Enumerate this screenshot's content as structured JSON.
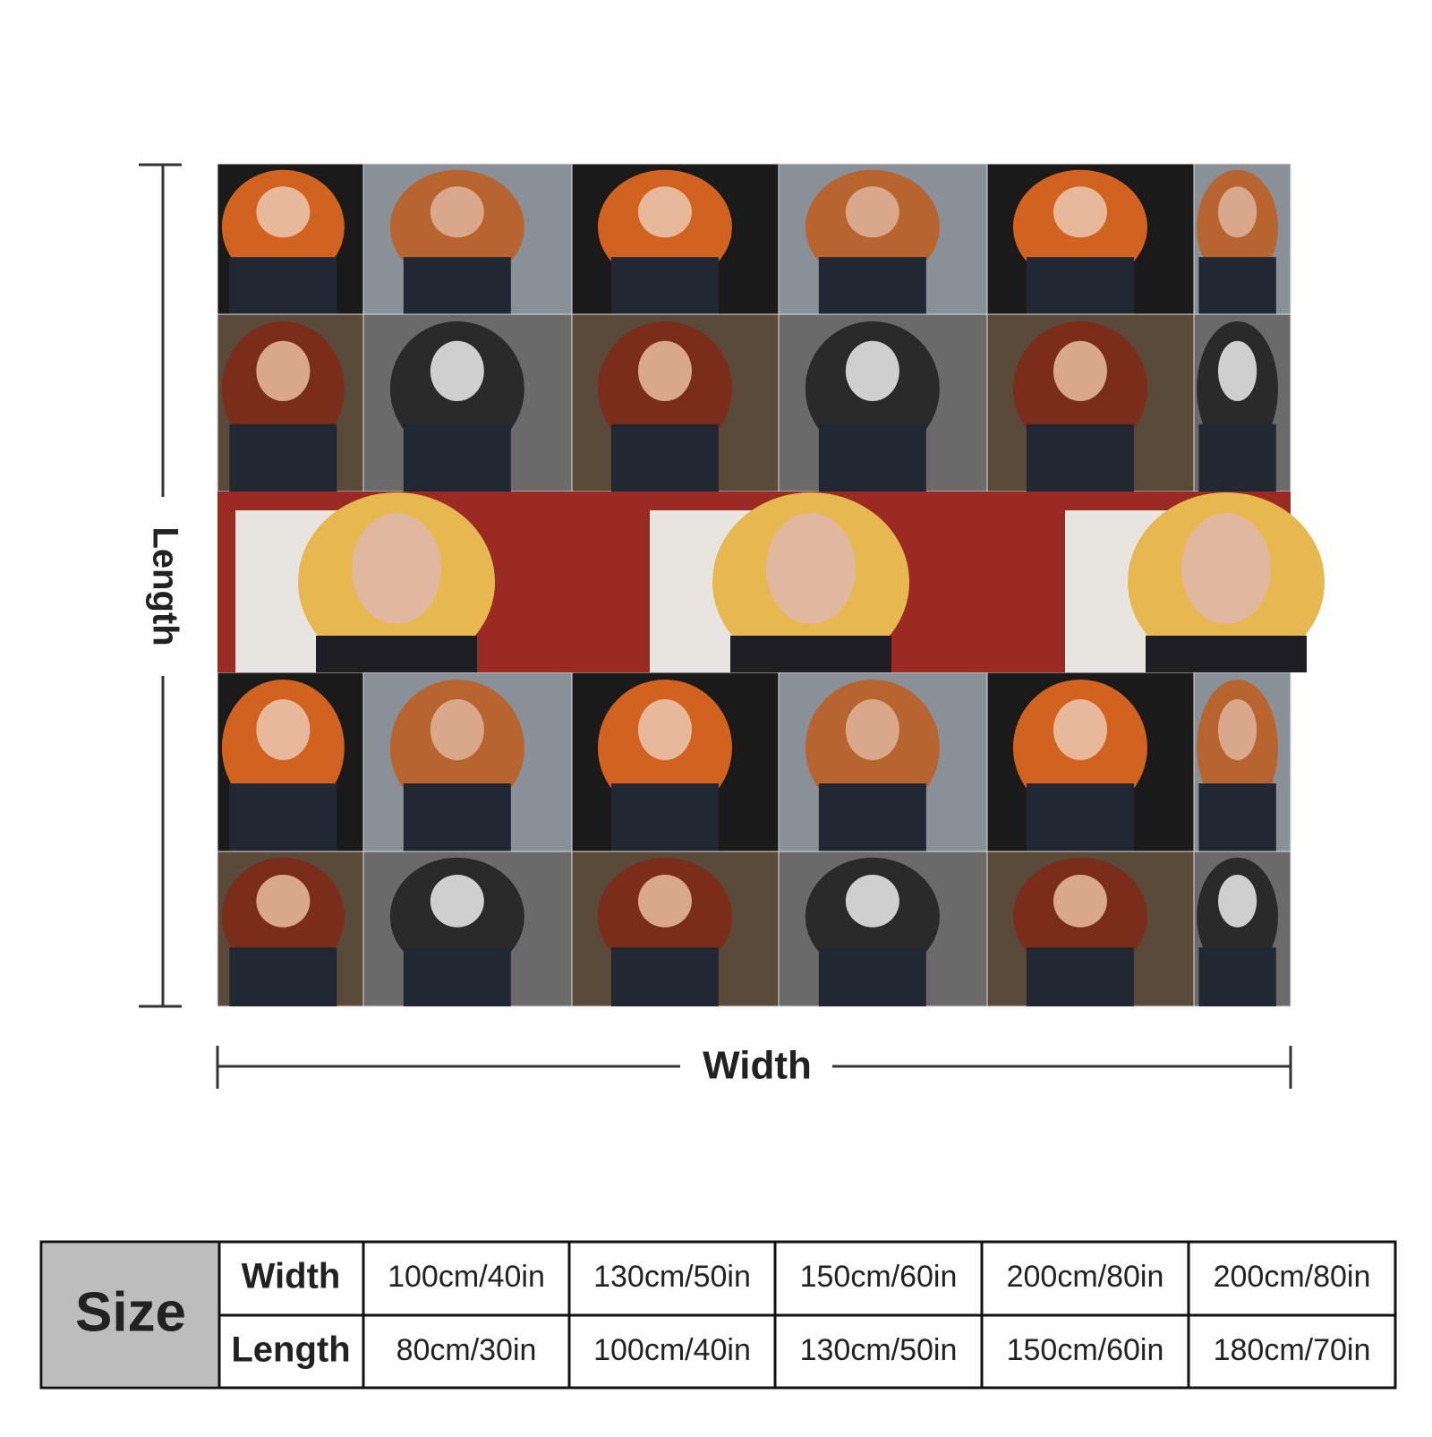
{
  "dimensions": {
    "length_label": "Length",
    "width_label": "Width"
  },
  "table": {
    "corner": "Size",
    "row_headers": [
      "Width",
      "Length"
    ],
    "rows": [
      [
        "100cm/40in",
        "130cm/50in",
        "150cm/60in",
        "200cm/80in",
        "200cm/80in"
      ],
      [
        "80cm/30in",
        "100cm/40in",
        "130cm/50in",
        "150cm/60in",
        "180cm/70in"
      ]
    ]
  }
}
